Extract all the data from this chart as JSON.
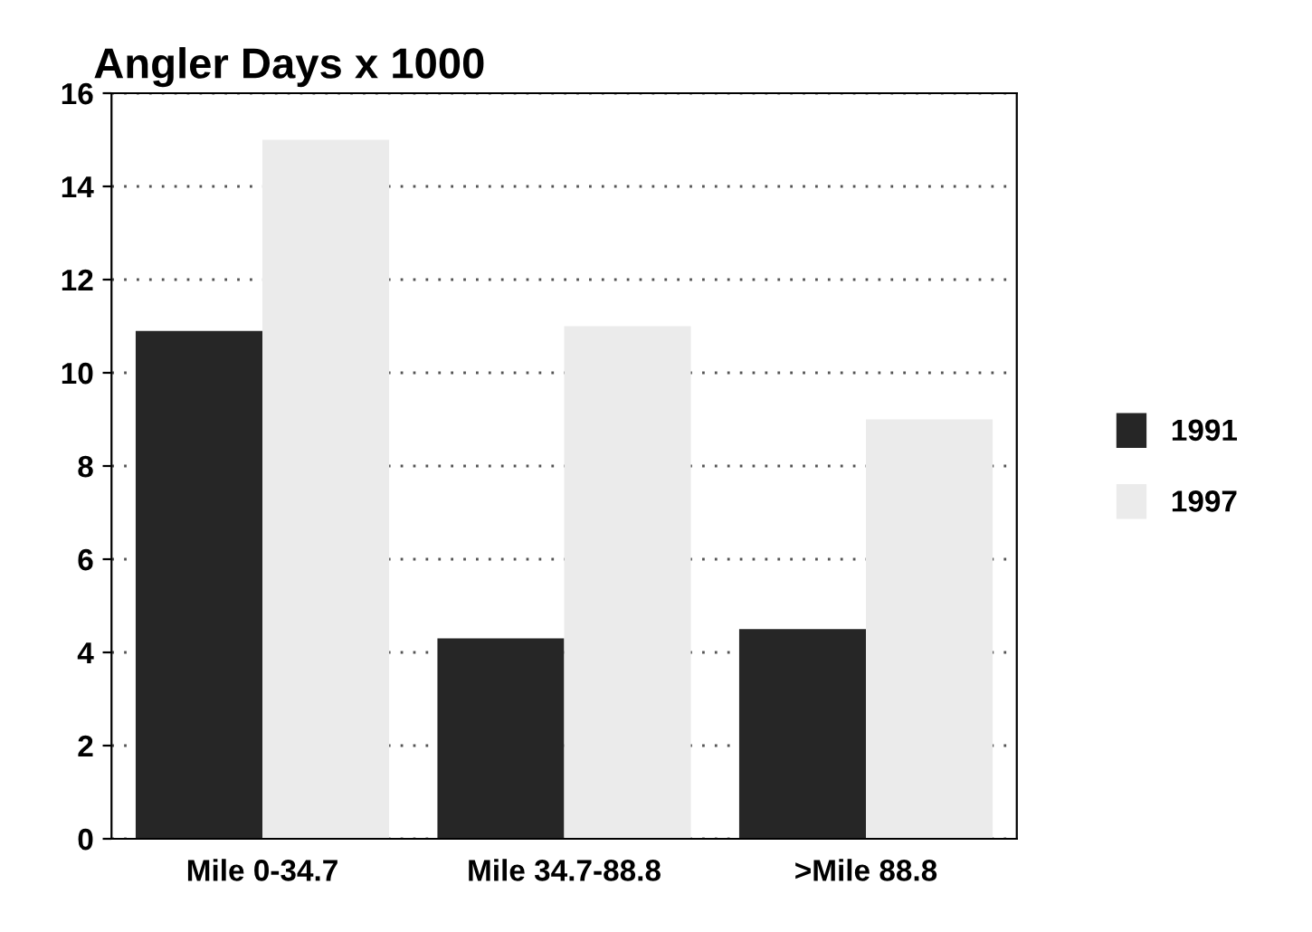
{
  "chart_data": {
    "type": "bar",
    "title": "Angler Days x 1000",
    "categories": [
      "Mile 0-34.7",
      "Mile 34.7-88.8",
      ">Mile 88.8"
    ],
    "series": [
      {
        "name": "1991",
        "color": "#262626",
        "values": [
          10.9,
          4.3,
          4.5
        ]
      },
      {
        "name": "1997",
        "color": "#ebebeb",
        "values": [
          15,
          11,
          9
        ]
      }
    ],
    "ylim": [
      0,
      16
    ],
    "yticks": [
      0,
      2,
      4,
      6,
      8,
      10,
      12,
      14,
      16
    ],
    "grid": "y",
    "legend": "right"
  }
}
